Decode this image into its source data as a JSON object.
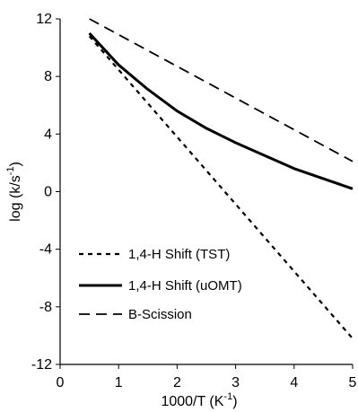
{
  "chart_data": {
    "type": "line",
    "xlabel": "1000/T (K",
    "xlabel_sup": "-1",
    "xlabel_suffix": ")",
    "ylabel": "log (k/s",
    "ylabel_sup": "-1",
    "ylabel_suffix": ")",
    "xlim": [
      0,
      5
    ],
    "ylim": [
      -12,
      12
    ],
    "xticks": [
      "0",
      "1",
      "2",
      "3",
      "4",
      "5"
    ],
    "yticks": [
      "12",
      "8",
      "4",
      "0",
      "-4",
      "-8",
      "-12"
    ],
    "grid": false,
    "legend_position": "bottom-left",
    "series": [
      {
        "name": "1,4-H Shift (TST)",
        "style": "dotted",
        "x": [
          0.5,
          5.0
        ],
        "y": [
          10.8,
          -10.2
        ]
      },
      {
        "name": "1,4-H Shift (uOMT)",
        "style": "solid",
        "x": [
          0.5,
          1.0,
          1.5,
          2.0,
          2.5,
          3.0,
          3.5,
          4.0,
          4.5,
          5.0
        ],
        "y": [
          11.0,
          8.8,
          7.1,
          5.6,
          4.4,
          3.4,
          2.5,
          1.6,
          0.9,
          0.2
        ]
      },
      {
        "name": "B-Scission",
        "style": "dashed",
        "x": [
          0.5,
          5.0
        ],
        "y": [
          12.0,
          2.1
        ]
      }
    ]
  }
}
